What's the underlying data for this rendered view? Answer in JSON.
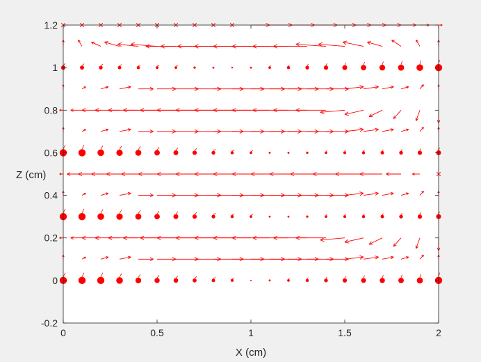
{
  "chart_data": {
    "type": "quiver",
    "title": "",
    "xlabel": "X (cm)",
    "ylabel": "Z (cm)",
    "xlim": [
      0,
      2
    ],
    "ylim": [
      -0.2,
      1.2
    ],
    "xticks": [
      "0",
      "0.5",
      "1",
      "1.5",
      "2"
    ],
    "yticks": [
      "-0.2",
      "0",
      "0.2",
      "0.4",
      "0.6",
      "0.8",
      "1",
      "1.2"
    ],
    "grid": false,
    "legend": "none",
    "colors": {
      "field": "#ff0000",
      "axes": "#262626",
      "plot_bg": "#ffffff",
      "figure_bg": "#f0f0f0"
    },
    "grid_x_step": 0.1,
    "grid_x_count": 21,
    "rows": [
      {
        "z": 0.0,
        "pattern": "dots",
        "mag": [
          1,
          1,
          1,
          0.9,
          0.75,
          0.65,
          0.55,
          0.45,
          0.35,
          0.25,
          0,
          0.1,
          0.2,
          0.3,
          0.4,
          0.5,
          0.6,
          0.65,
          0.7,
          0.8,
          1
        ],
        "u": [
          0,
          0,
          0,
          0,
          0,
          0,
          0,
          0,
          0,
          0,
          0,
          0,
          0,
          0,
          0,
          0,
          0,
          0,
          0,
          0,
          0
        ],
        "v": [
          0,
          0,
          0,
          0,
          0,
          0,
          0,
          0,
          0,
          0,
          0,
          0,
          0,
          0,
          0,
          0,
          0,
          0,
          0,
          0,
          0
        ]
      },
      {
        "z": 0.1,
        "pattern": "arrows",
        "mag": [
          0.6,
          0.5,
          0.45,
          0.4,
          0.35,
          0.3,
          0.25,
          0.2,
          0.15,
          0.1,
          0.05,
          0.1,
          0.2,
          0.3,
          0.4,
          0.5,
          0.6,
          0.7,
          0.8,
          0.9,
          1
        ],
        "u": [
          0,
          0.02,
          0.04,
          0.06,
          0.08,
          0.1,
          0.12,
          0.14,
          0.16,
          0.17,
          0.18,
          0.17,
          0.16,
          0.14,
          0.12,
          0.1,
          0.08,
          0.06,
          0.04,
          0.02,
          0
        ],
        "v": [
          0.02,
          0.01,
          0.01,
          0.01,
          0,
          0,
          0,
          0,
          0,
          0,
          0,
          0,
          0,
          0,
          0,
          0.01,
          0.01,
          0.01,
          0.01,
          0.02,
          0.02
        ]
      },
      {
        "z": 0.2,
        "pattern": "arrows",
        "mag": [
          0.5,
          0.4,
          0.35,
          0.3,
          0.25,
          0.2,
          0.15,
          0.1,
          0.1,
          0.1,
          0.1,
          0.1,
          0.15,
          0.2,
          0.25,
          0.3,
          0.35,
          0.4,
          0.45,
          0.5,
          0.6
        ],
        "u": [
          -0.02,
          -0.06,
          -0.1,
          -0.13,
          -0.16,
          -0.18,
          -0.19,
          -0.2,
          -0.2,
          -0.2,
          -0.2,
          -0.2,
          -0.19,
          -0.18,
          -0.16,
          -0.13,
          -0.1,
          -0.07,
          -0.04,
          -0.02,
          0
        ],
        "v": [
          0,
          0,
          0,
          0,
          0,
          0,
          0,
          0,
          0,
          0,
          0,
          0,
          0,
          0,
          0,
          -0.01,
          -0.02,
          -0.03,
          -0.04,
          -0.05,
          -0.06
        ]
      },
      {
        "z": 0.3,
        "pattern": "dots",
        "mag": [
          1,
          1,
          0.9,
          0.85,
          0.8,
          0.7,
          0.6,
          0.5,
          0.4,
          0.3,
          0.2,
          0.1,
          0.1,
          0.15,
          0.2,
          0.25,
          0.3,
          0.35,
          0.4,
          0.5,
          0.6
        ],
        "u": [
          0,
          0,
          0,
          0,
          0,
          0,
          0,
          0,
          0,
          0,
          0,
          0,
          0,
          0,
          0,
          0,
          0,
          0,
          0,
          0,
          0
        ],
        "v": [
          0,
          0,
          0,
          0,
          0,
          0,
          0,
          0,
          0,
          0,
          0,
          0,
          0,
          0,
          0,
          0,
          0,
          0,
          0,
          0,
          0
        ]
      },
      {
        "z": 0.4,
        "pattern": "arrows",
        "mag": [
          0.6,
          0.5,
          0.45,
          0.4,
          0.35,
          0.3,
          0.25,
          0.2,
          0.15,
          0.1,
          0.05,
          0.1,
          0.2,
          0.3,
          0.4,
          0.5,
          0.6,
          0.7,
          0.8,
          0.9,
          1
        ],
        "u": [
          0,
          0.02,
          0.04,
          0.06,
          0.08,
          0.1,
          0.12,
          0.14,
          0.16,
          0.17,
          0.18,
          0.17,
          0.16,
          0.14,
          0.12,
          0.1,
          0.08,
          0.06,
          0.04,
          0.02,
          0
        ],
        "v": [
          0.02,
          0.01,
          0.01,
          0.01,
          0,
          0,
          0,
          0,
          0,
          0,
          0,
          0,
          0,
          0,
          0,
          0.01,
          0.01,
          0.01,
          0.01,
          0.02,
          0.02
        ]
      },
      {
        "z": 0.5,
        "pattern": "arrows",
        "mag": [
          0.3,
          0.3,
          0.3,
          0.3,
          0.3,
          0.3,
          0.3,
          0.3,
          0.3,
          0.3,
          0.3,
          0.3,
          0.3,
          0.3,
          0.3,
          0.3,
          0.3,
          0.3,
          0.3,
          0.3,
          0.3
        ],
        "u": [
          -0.02,
          -0.08,
          -0.12,
          -0.15,
          -0.17,
          -0.19,
          -0.2,
          -0.2,
          -0.2,
          -0.2,
          -0.2,
          -0.2,
          -0.2,
          -0.2,
          -0.19,
          -0.17,
          -0.15,
          -0.12,
          -0.08,
          -0.04,
          0
        ],
        "v": [
          0,
          0,
          0,
          0,
          0,
          0,
          0,
          0,
          0,
          0,
          0,
          0,
          0,
          0,
          0,
          0,
          0,
          0,
          0,
          0,
          0
        ]
      },
      {
        "z": 0.6,
        "pattern": "dots",
        "mag": [
          1,
          1,
          0.9,
          0.85,
          0.8,
          0.7,
          0.6,
          0.5,
          0.4,
          0.3,
          0.2,
          0.1,
          0.1,
          0.15,
          0.2,
          0.25,
          0.3,
          0.35,
          0.4,
          0.5,
          0.6
        ],
        "u": [
          0,
          0,
          0,
          0,
          0,
          0,
          0,
          0,
          0,
          0,
          0,
          0,
          0,
          0,
          0,
          0,
          0,
          0,
          0,
          0,
          0
        ],
        "v": [
          0,
          0,
          0,
          0,
          0,
          0,
          0,
          0,
          0,
          0,
          0,
          0,
          0,
          0,
          0,
          0,
          0,
          0,
          0,
          0,
          0
        ]
      },
      {
        "z": 0.7,
        "pattern": "arrows",
        "mag": [
          0.6,
          0.5,
          0.45,
          0.4,
          0.35,
          0.3,
          0.25,
          0.2,
          0.15,
          0.1,
          0.05,
          0.1,
          0.2,
          0.3,
          0.4,
          0.5,
          0.6,
          0.7,
          0.8,
          0.9,
          1
        ],
        "u": [
          0,
          0.02,
          0.04,
          0.06,
          0.08,
          0.1,
          0.12,
          0.14,
          0.16,
          0.17,
          0.18,
          0.17,
          0.16,
          0.14,
          0.12,
          0.1,
          0.08,
          0.06,
          0.04,
          0.02,
          0
        ],
        "v": [
          0.02,
          0.01,
          0.01,
          0.01,
          0,
          0,
          0,
          0,
          0,
          0,
          0,
          0,
          0,
          0,
          0,
          0.01,
          0.01,
          0.01,
          0.01,
          0.02,
          0.02
        ]
      },
      {
        "z": 0.8,
        "pattern": "arrows",
        "mag": [
          0.5,
          0.4,
          0.35,
          0.3,
          0.25,
          0.2,
          0.15,
          0.1,
          0.1,
          0.1,
          0.1,
          0.1,
          0.15,
          0.2,
          0.25,
          0.3,
          0.35,
          0.4,
          0.45,
          0.5,
          0.6
        ],
        "u": [
          -0.02,
          -0.06,
          -0.1,
          -0.13,
          -0.16,
          -0.18,
          -0.19,
          -0.2,
          -0.2,
          -0.2,
          -0.2,
          -0.2,
          -0.19,
          -0.18,
          -0.16,
          -0.13,
          -0.1,
          -0.07,
          -0.04,
          -0.02,
          0
        ],
        "v": [
          0,
          0,
          0,
          0,
          0,
          0,
          0,
          0,
          0,
          0,
          0,
          0,
          0,
          0,
          0,
          -0.01,
          -0.02,
          -0.03,
          -0.04,
          -0.05,
          -0.06
        ]
      },
      {
        "z": 0.9,
        "pattern": "arrows",
        "mag": [
          0.6,
          0.5,
          0.45,
          0.4,
          0.35,
          0.3,
          0.25,
          0.2,
          0.15,
          0.1,
          0.05,
          0.1,
          0.2,
          0.3,
          0.4,
          0.5,
          0.6,
          0.7,
          0.8,
          0.9,
          1
        ],
        "u": [
          0,
          0.02,
          0.04,
          0.06,
          0.08,
          0.1,
          0.12,
          0.14,
          0.16,
          0.17,
          0.18,
          0.17,
          0.16,
          0.14,
          0.12,
          0.1,
          0.08,
          0.06,
          0.04,
          0.02,
          0
        ],
        "v": [
          0.02,
          0.01,
          0.01,
          0.01,
          0,
          0,
          0,
          0,
          0,
          0,
          0,
          0,
          0,
          0,
          0,
          0.01,
          0.01,
          0.01,
          0.01,
          0.02,
          0.02
        ]
      },
      {
        "z": 1.0,
        "pattern": "dots",
        "mag": [
          0.5,
          0.45,
          0.4,
          0.35,
          0.3,
          0.25,
          0.2,
          0.15,
          0.1,
          0.05,
          0.1,
          0.2,
          0.3,
          0.4,
          0.5,
          0.6,
          0.7,
          0.75,
          0.8,
          0.9,
          1
        ],
        "u": [
          0,
          0,
          0,
          0,
          0,
          0,
          0,
          0,
          0,
          0,
          0,
          0,
          0,
          0,
          0,
          0,
          0,
          0,
          0,
          0,
          0
        ],
        "v": [
          0,
          0,
          0,
          0,
          0,
          0,
          0,
          0,
          0,
          0,
          0,
          0,
          0,
          0,
          0,
          0,
          0,
          0,
          0,
          0,
          0
        ]
      },
      {
        "z": 1.1,
        "pattern": "arrows",
        "mag": [
          0.6,
          0.5,
          0.45,
          0.4,
          0.35,
          0.3,
          0.25,
          0.2,
          0.15,
          0.1,
          0.05,
          0.1,
          0.2,
          0.3,
          0.4,
          0.5,
          0.6,
          0.7,
          0.8,
          0.9,
          1
        ],
        "u": [
          0,
          -0.02,
          -0.05,
          -0.08,
          -0.11,
          -0.14,
          -0.16,
          -0.18,
          -0.19,
          -0.2,
          -0.2,
          -0.2,
          -0.19,
          -0.18,
          -0.16,
          -0.14,
          -0.11,
          -0.08,
          -0.05,
          -0.02,
          0
        ],
        "v": [
          0.03,
          0.03,
          0.02,
          0.02,
          0.01,
          0.01,
          0,
          0,
          0,
          0,
          0,
          0,
          0,
          0,
          0.01,
          0.01,
          0.02,
          0.02,
          0.03,
          0.03,
          0.03
        ]
      },
      {
        "z": 1.2,
        "pattern": "arrows",
        "mag": [
          0.3,
          0.3,
          0.3,
          0.3,
          0.3,
          0.3,
          0.3,
          0.3,
          0.3,
          0.3,
          0.3,
          0.3,
          0.3,
          0.3,
          0.3,
          0.3,
          0.3,
          0.3,
          0.3,
          0.3,
          0.3
        ],
        "u": [
          0,
          0,
          0,
          0,
          0,
          0,
          0,
          0,
          0,
          0,
          0.1,
          0.12,
          0.14,
          0.16,
          0.16,
          0.14,
          0.12,
          0.1,
          0.08,
          0.05,
          0.02
        ],
        "v": [
          0,
          0,
          0,
          0,
          0,
          0,
          0,
          0,
          0,
          0,
          0,
          0,
          0,
          0,
          0,
          0,
          0,
          0,
          0,
          0,
          0
        ]
      }
    ]
  }
}
